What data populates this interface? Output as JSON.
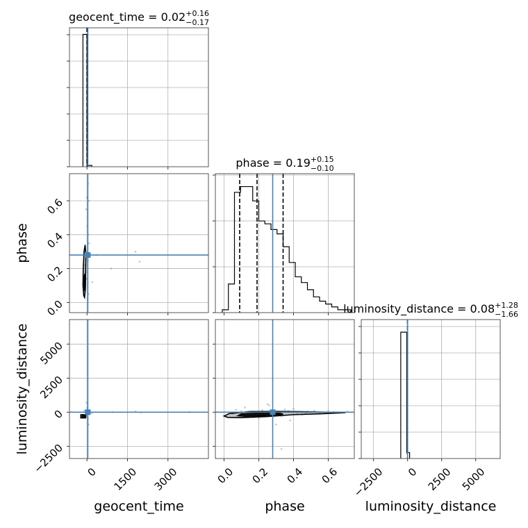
{
  "chart_data": {
    "type": "corner",
    "parameters": [
      "geocent_time",
      "phase",
      "luminosity_distance"
    ],
    "colors": {
      "truth": "#4682b4",
      "hist": "#000000",
      "grid": "#b0b0b0",
      "samples": "#7f7f7f"
    },
    "grid": true,
    "panels": [
      {
        "id": "hist-geocent_time",
        "row": 0,
        "col": 0,
        "type": "histogram",
        "title_param": "geocent_time",
        "title_value": "0.02",
        "title_plus": "+0.16",
        "title_minus": "−0.17",
        "xlim": [
          -650,
          4500
        ],
        "bin_edges": [
          -150,
          0,
          180
        ],
        "counts": [
          1.0,
          0.01
        ],
        "ylim": [
          0,
          1.05
        ],
        "quantiles": [
          -0.15,
          0.02,
          0.18
        ],
        "truth": 30,
        "xticks": [
          0,
          1500,
          3000
        ],
        "xticklabels": [
          "",
          "",
          ""
        ],
        "ytick_fracs": [
          0,
          0.19,
          0.38,
          0.57,
          0.76,
          0.95
        ]
      },
      {
        "id": "scatter-phase-vs-geocent_time",
        "row": 1,
        "col": 0,
        "type": "2d",
        "xlim": [
          -650,
          4500
        ],
        "ylim": [
          -0.06,
          0.76
        ],
        "xticks": [
          0,
          1500,
          3000
        ],
        "xticklabels": [
          "",
          "",
          ""
        ],
        "yticks": [
          0.0,
          0.2,
          0.4,
          0.6
        ],
        "yticklabels": [
          "0.0",
          "0.2",
          "0.4",
          "0.6"
        ],
        "ylabel": "phase",
        "truth_x": 30,
        "truth_y": 0.28,
        "samples": [
          [
            -60,
            0.1
          ],
          [
            -20,
            0.14
          ],
          [
            10,
            0.18
          ],
          [
            30,
            0.25
          ],
          [
            -40,
            0.3
          ],
          [
            50,
            0.4
          ],
          [
            20,
            0.5
          ],
          [
            -10,
            0.62
          ],
          [
            40,
            0.7
          ],
          [
            60,
            0.05
          ],
          [
            -80,
            0.22
          ],
          [
            200,
            0.12
          ],
          [
            350,
            0.28
          ],
          [
            900,
            0.2
          ],
          [
            1800,
            0.3
          ],
          [
            1950,
            0.24
          ],
          [
            -120,
            0.08
          ],
          [
            80,
            0.35
          ],
          [
            15,
            0.45
          ],
          [
            -30,
            0.55
          ],
          [
            70,
            0.6
          ],
          [
            25,
            0.02
          ]
        ],
        "contours": [
          {
            "points": [
              [
                -120,
                0.04
              ],
              [
                -150,
                0.1
              ],
              [
                -140,
                0.2
              ],
              [
                -110,
                0.3
              ],
              [
                -70,
                0.34
              ],
              [
                -40,
                0.28
              ],
              [
                -50,
                0.18
              ],
              [
                -60,
                0.08
              ],
              [
                -90,
                0.03
              ]
            ]
          },
          {
            "points": [
              [
                -90,
                0.07
              ],
              [
                -110,
                0.11
              ],
              [
                -100,
                0.16
              ],
              [
                -70,
                0.17
              ],
              [
                -60,
                0.12
              ],
              [
                -70,
                0.07
              ]
            ]
          }
        ]
      },
      {
        "id": "hist-phase",
        "row": 1,
        "col": 1,
        "type": "histogram",
        "title_param": "phase",
        "title_value": "0.19",
        "title_plus": "+0.15",
        "title_minus": "−0.10",
        "xlim": [
          -0.05,
          0.75
        ],
        "bin_edges": [
          -0.01,
          0.025,
          0.06,
          0.095,
          0.13,
          0.165,
          0.2,
          0.235,
          0.27,
          0.305,
          0.34,
          0.375,
          0.41,
          0.445,
          0.48,
          0.515,
          0.55,
          0.585,
          0.62,
          0.655,
          0.69,
          0.73
        ],
        "counts": [
          0.02,
          0.2,
          0.84,
          0.88,
          0.88,
          0.78,
          0.64,
          0.62,
          0.58,
          0.55,
          0.46,
          0.35,
          0.25,
          0.21,
          0.16,
          0.11,
          0.08,
          0.06,
          0.04,
          0.02,
          0.02
        ],
        "ylim": [
          0,
          0.97
        ],
        "quantiles": [
          0.09,
          0.19,
          0.34
        ],
        "truth": 0.28,
        "xticks": [
          0.0,
          0.2,
          0.4,
          0.6
        ],
        "xticklabels": [
          "",
          "",
          "",
          ""
        ],
        "ytick_fracs": [
          0,
          0.33,
          0.66,
          0.99
        ]
      },
      {
        "id": "scatter-luminosity_distance-vs-geocent_time",
        "row": 2,
        "col": 0,
        "type": "2d",
        "xlim": [
          -650,
          4500
        ],
        "ylim": [
          -3400,
          6800
        ],
        "xticks": [
          0,
          1500,
          3000
        ],
        "xticklabels": [
          "0",
          "1500",
          "3000"
        ],
        "yticks": [
          -2500,
          0,
          2500,
          5000
        ],
        "yticklabels": [
          "−2500",
          "0",
          "2500",
          "5000"
        ],
        "xlabel": "geocent_time",
        "ylabel": "luminosity_distance",
        "truth_x": 30,
        "truth_y": 0,
        "samples": [
          [
            -60,
            -200
          ],
          [
            20,
            100
          ],
          [
            -30,
            -350
          ],
          [
            80,
            60
          ],
          [
            180,
            -60
          ],
          [
            950,
            0
          ],
          [
            1800,
            60
          ],
          [
            2000,
            -30
          ],
          [
            3800,
            0
          ],
          [
            -100,
            120
          ],
          [
            40,
            -500
          ],
          [
            10,
            300
          ],
          [
            -20,
            700
          ],
          [
            60,
            -900
          ]
        ],
        "contours": [
          {
            "points": [
              [
                -230,
                -180
              ],
              [
                -230,
                -420
              ],
              [
                -50,
                -420
              ],
              [
                -40,
                -180
              ]
            ]
          },
          {
            "points": [
              [
                -180,
                -250
              ],
              [
                -180,
                -380
              ],
              [
                -80,
                -380
              ],
              [
                -80,
                -250
              ]
            ]
          }
        ]
      },
      {
        "id": "scatter-luminosity_distance-vs-phase",
        "row": 2,
        "col": 1,
        "type": "2d",
        "xlim": [
          -0.05,
          0.75
        ],
        "ylim": [
          -3400,
          6800
        ],
        "xticks": [
          0.0,
          0.2,
          0.4,
          0.6
        ],
        "xticklabels": [
          "0.0",
          "0.2",
          "0.4",
          "0.6"
        ],
        "yticks": [
          -2500,
          0,
          2500,
          5000
        ],
        "yticklabels": [
          "",
          "",
          "",
          ""
        ],
        "xlabel": "phase",
        "truth_x": 0.28,
        "truth_y": 0,
        "samples": [
          [
            0.05,
            -100
          ],
          [
            0.1,
            80
          ],
          [
            0.15,
            -250
          ],
          [
            0.22,
            150
          ],
          [
            0.3,
            -50
          ],
          [
            0.35,
            200
          ],
          [
            0.42,
            -120
          ],
          [
            0.48,
            60
          ],
          [
            0.55,
            -40
          ],
          [
            0.6,
            100
          ],
          [
            0.66,
            -20
          ],
          [
            0.71,
            40
          ],
          [
            0.12,
            350
          ],
          [
            0.2,
            -450
          ],
          [
            0.26,
            500
          ],
          [
            0.33,
            -300
          ],
          [
            0.4,
            250
          ],
          [
            0.45,
            -180
          ],
          [
            0.52,
            120
          ],
          [
            0.58,
            -60
          ],
          [
            0.3,
            -900
          ],
          [
            0.33,
            -2700
          ],
          [
            0.25,
            600
          ],
          [
            0.38,
            -600
          ],
          [
            0.07,
            180
          ],
          [
            0.17,
            -380
          ],
          [
            0.27,
            -150
          ],
          [
            0.37,
            90
          ],
          [
            0.47,
            -70
          ],
          [
            0.63,
            30
          ]
        ],
        "contours": [
          {
            "points": [
              [
                0.0,
                -280
              ],
              [
                0.03,
                -100
              ],
              [
                0.15,
                50
              ],
              [
                0.3,
                60
              ],
              [
                0.45,
                40
              ],
              [
                0.6,
                0
              ],
              [
                0.7,
                -30
              ],
              [
                0.55,
                -120
              ],
              [
                0.4,
                -180
              ],
              [
                0.25,
                -320
              ],
              [
                0.1,
                -400
              ],
              [
                0.02,
                -380
              ]
            ]
          },
          {
            "points": [
              [
                0.08,
                -260
              ],
              [
                0.1,
                -120
              ],
              [
                0.2,
                -60
              ],
              [
                0.32,
                -70
              ],
              [
                0.34,
                -150
              ],
              [
                0.22,
                -260
              ],
              [
                0.12,
                -300
              ]
            ]
          }
        ]
      },
      {
        "id": "hist-luminosity_distance",
        "row": 2,
        "col": 2,
        "type": "histogram",
        "title_param": "luminosity_distance",
        "title_value": "0.08",
        "title_plus": "+1.28",
        "title_minus": "−1.66",
        "xlim": [
          -3400,
          6800
        ],
        "bin_edges": [
          -500,
          -60,
          150
        ],
        "counts": [
          0.955,
          0.045
        ],
        "ylim": [
          0,
          1.05
        ],
        "quantiles": [
          -1.58,
          0.08,
          1.36
        ],
        "truth": 0,
        "xticks": [
          -2500,
          0,
          2500,
          5000
        ],
        "xticklabels": [
          "−2500",
          "0",
          "2500",
          "5000"
        ],
        "xlabel": "luminosity_distance",
        "ytick_fracs": [
          0,
          0.19,
          0.38,
          0.57,
          0.76,
          0.95
        ]
      }
    ]
  }
}
